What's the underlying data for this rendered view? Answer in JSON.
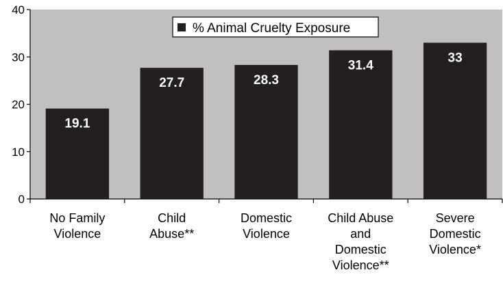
{
  "chart_data": {
    "type": "bar",
    "categories": [
      [
        "No Family",
        "Violence"
      ],
      [
        "Child",
        "Abuse**"
      ],
      [
        "Domestic",
        "Violence"
      ],
      [
        "Child Abuse",
        "and",
        "Domestic",
        "Violence**"
      ],
      [
        "Severe",
        "Domestic",
        "Violence*"
      ]
    ],
    "series": [
      {
        "name": "% Animal Cruelty Exposure",
        "values": [
          19.1,
          27.7,
          28.3,
          31.4,
          33
        ],
        "labels": [
          "19.1",
          "27.7",
          "28.3",
          "31.4",
          "33"
        ]
      }
    ],
    "title": "",
    "xlabel": "",
    "ylabel": "",
    "ylim": [
      0,
      40
    ],
    "yticks": [
      0,
      10,
      20,
      30,
      40
    ],
    "grid": false,
    "legend": "top-center",
    "colors": {
      "plot_background": "#c0c0c0",
      "bar": "#231f20",
      "data_label": "#ffffff",
      "axis": "#000000"
    }
  }
}
